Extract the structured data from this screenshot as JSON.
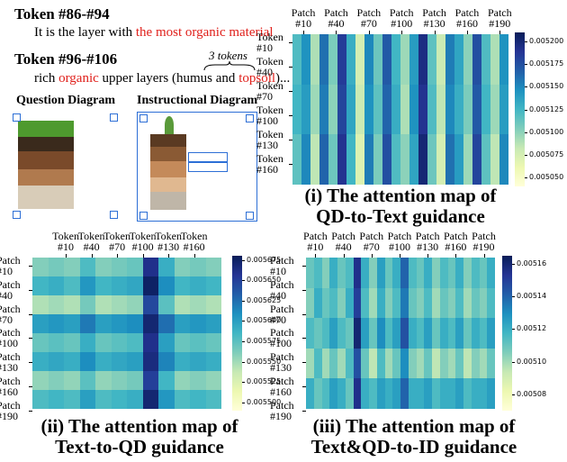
{
  "text_panel": {
    "sections": [
      {
        "heading": "Token #86-#94",
        "text": "It is the layer with ",
        "highlight": "the most organic material"
      },
      {
        "heading": "Token #96-#106",
        "text_before": "rich ",
        "highlight_1": "organic",
        "text_middle": " upper layers (humus and ",
        "highlight_2": "topsoil",
        "text_after": ")...",
        "note": "3 tokens"
      }
    ],
    "diagrams": [
      "Question Diagram",
      "Instructional Diagram"
    ]
  },
  "chart_data": [
    {
      "type": "heatmap",
      "title": [
        "(i) The attention map of",
        "QD-to-Text guidance"
      ],
      "xlim": [
        0,
        198
      ],
      "ylim": [
        0,
        185
      ],
      "xticks": [
        {
          "value": 10,
          "label": "Patch #10"
        },
        {
          "value": 40,
          "label": "Patch #40"
        },
        {
          "value": 70,
          "label": "Patch #70"
        },
        {
          "value": 100,
          "label": "Patch #100"
        },
        {
          "value": 130,
          "label": "Patch #130"
        },
        {
          "value": 160,
          "label": "Patch #160"
        },
        {
          "value": 190,
          "label": "Patch #190"
        }
      ],
      "yticks": [
        {
          "value": 10,
          "label": "Token #10"
        },
        {
          "value": 40,
          "label": "Token #40"
        },
        {
          "value": 70,
          "label": "Token #70"
        },
        {
          "value": 100,
          "label": "Token #100"
        },
        {
          "value": 130,
          "label": "Token #130"
        },
        {
          "value": 160,
          "label": "Token #160"
        }
      ],
      "clim": [
        0.00504,
        0.00521
      ],
      "cticks": [
        {
          "value": 0.00505,
          "label": "0.005050"
        },
        {
          "value": 0.005075,
          "label": "0.005075"
        },
        {
          "value": 0.0051,
          "label": "0.005100"
        },
        {
          "value": 0.005125,
          "label": "0.005125"
        },
        {
          "value": 0.00515,
          "label": "0.005150"
        },
        {
          "value": 0.005175,
          "label": "0.005175"
        },
        {
          "value": 0.0052,
          "label": "0.005200"
        }
      ],
      "colormap": [
        "#ffffd9",
        "#edf8b1",
        "#c7e9b4",
        "#7fcdbb",
        "#41b6c4",
        "#1d91c0",
        "#225ea8",
        "#253494",
        "#081d58"
      ],
      "values": [
        [
          0.00512,
          0.005145,
          0.00509,
          0.00516,
          0.005105,
          0.005185,
          0.00513,
          0.005075,
          0.00515,
          0.00511,
          0.00517,
          0.005125,
          0.005095,
          0.00514,
          0.005195,
          0.005115,
          0.00508,
          0.005155,
          0.005135,
          0.0051,
          0.005175,
          0.00512,
          0.00509,
          0.005145
        ],
        [
          0.005125,
          0.00514,
          0.005095,
          0.005155,
          0.0051,
          0.00518,
          0.005135,
          0.00508,
          0.005145,
          0.005115,
          0.005165,
          0.00513,
          0.00509,
          0.005145,
          0.00519,
          0.00512,
          0.005085,
          0.00515,
          0.00513,
          0.005105,
          0.00517,
          0.005125,
          0.005095,
          0.00514
        ],
        [
          0.005115,
          0.00515,
          0.005085,
          0.005165,
          0.00511,
          0.00519,
          0.005125,
          0.00507,
          0.005155,
          0.005105,
          0.005175,
          0.00512,
          0.0051,
          0.005135,
          0.0052,
          0.00511,
          0.005075,
          0.00516,
          0.00514,
          0.005095,
          0.00518,
          0.005115,
          0.005085,
          0.00515
        ]
      ]
    },
    {
      "type": "heatmap",
      "title": [
        "(ii) The attention map of",
        "Text-to-QD guidance"
      ],
      "xlim": [
        -29,
        192
      ],
      "ylim": [
        0,
        188
      ],
      "xticks": [
        {
          "value": 10,
          "label": "Token #10"
        },
        {
          "value": 40,
          "label": "Token #40"
        },
        {
          "value": 70,
          "label": "Token #70"
        },
        {
          "value": 100,
          "label": "Token #100"
        },
        {
          "value": 130,
          "label": "Token #130"
        },
        {
          "value": 160,
          "label": "Token #160"
        }
      ],
      "yticks": [
        {
          "value": 10,
          "label": "Patch #10"
        },
        {
          "value": 40,
          "label": "Patch #40"
        },
        {
          "value": 70,
          "label": "Patch #70"
        },
        {
          "value": 100,
          "label": "Patch #100"
        },
        {
          "value": 130,
          "label": "Patch #130"
        },
        {
          "value": 160,
          "label": "Patch #160"
        },
        {
          "value": 190,
          "label": "Patch #190"
        }
      ],
      "clim": [
        0.00549,
        0.00568
      ],
      "cticks": [
        {
          "value": 0.0055,
          "label": "0.005500"
        },
        {
          "value": 0.005525,
          "label": "0.005525"
        },
        {
          "value": 0.00555,
          "label": "0.005550"
        },
        {
          "value": 0.005575,
          "label": "0.005575"
        },
        {
          "value": 0.0056,
          "label": "0.005600"
        },
        {
          "value": 0.005625,
          "label": "0.005625"
        },
        {
          "value": 0.00565,
          "label": "0.005650"
        },
        {
          "value": 0.005675,
          "label": "0.005675"
        }
      ],
      "colormap": [
        "#ffffd9",
        "#edf8b1",
        "#c7e9b4",
        "#7fcdbb",
        "#41b6c4",
        "#1d91c0",
        "#225ea8",
        "#253494",
        "#081d58"
      ],
      "values": [
        [
          0.00556,
          0.005565,
          0.00556,
          0.00558,
          0.00556,
          0.005565,
          0.00557,
          0.00566,
          0.00559,
          0.00556,
          0.005565,
          0.00556
        ],
        [
          0.005585,
          0.00559,
          0.00558,
          0.005605,
          0.005585,
          0.00559,
          0.005595,
          0.005675,
          0.00561,
          0.005585,
          0.00559,
          0.005585
        ],
        [
          0.005545,
          0.00555,
          0.005545,
          0.005565,
          0.005545,
          0.00555,
          0.005555,
          0.005645,
          0.005575,
          0.005545,
          0.00555,
          0.005545
        ],
        [
          0.0056,
          0.005605,
          0.0056,
          0.00562,
          0.0056,
          0.005605,
          0.00561,
          0.00567,
          0.005625,
          0.0056,
          0.005605,
          0.0056
        ],
        [
          0.00557,
          0.005575,
          0.00557,
          0.00559,
          0.00557,
          0.005575,
          0.00558,
          0.00566,
          0.0056,
          0.00557,
          0.005575,
          0.00557
        ],
        [
          0.00559,
          0.005595,
          0.00559,
          0.00561,
          0.00559,
          0.005595,
          0.0056,
          0.005665,
          0.005615,
          0.00559,
          0.005595,
          0.00559
        ],
        [
          0.005555,
          0.00556,
          0.005555,
          0.005575,
          0.005555,
          0.00556,
          0.005565,
          0.00565,
          0.005585,
          0.005555,
          0.00556,
          0.005555
        ],
        [
          0.00558,
          0.005585,
          0.00558,
          0.0056,
          0.00558,
          0.005585,
          0.00559,
          0.00567,
          0.005605,
          0.00558,
          0.005585,
          0.00558
        ]
      ]
    },
    {
      "type": "heatmap",
      "title": [
        "(iii) The attention map of",
        "Text&QD-to-ID guidance"
      ],
      "xlim": [
        0,
        202
      ],
      "ylim": [
        0,
        188
      ],
      "xticks": [
        {
          "value": 10,
          "label": "Patch #10"
        },
        {
          "value": 40,
          "label": "Patch #40"
        },
        {
          "value": 70,
          "label": "Patch #70"
        },
        {
          "value": 100,
          "label": "Patch #100"
        },
        {
          "value": 130,
          "label": "Patch #130"
        },
        {
          "value": 160,
          "label": "Patch #160"
        },
        {
          "value": 190,
          "label": "Patch #190"
        }
      ],
      "yticks": [
        {
          "value": 10,
          "label": "Patch #10"
        },
        {
          "value": 40,
          "label": "Patch #40"
        },
        {
          "value": 70,
          "label": "Patch #70"
        },
        {
          "value": 100,
          "label": "Patch #100"
        },
        {
          "value": 130,
          "label": "Patch #130"
        },
        {
          "value": 160,
          "label": "Patch #160"
        },
        {
          "value": 190,
          "label": "Patch #190"
        }
      ],
      "clim": [
        0.00507,
        0.005165
      ],
      "cticks": [
        {
          "value": 0.00508,
          "label": "0.00508"
        },
        {
          "value": 0.0051,
          "label": "0.00510"
        },
        {
          "value": 0.00512,
          "label": "0.00512"
        },
        {
          "value": 0.00514,
          "label": "0.00514"
        },
        {
          "value": 0.00516,
          "label": "0.00516"
        }
      ],
      "colormap": [
        "#ffffd9",
        "#edf8b1",
        "#c7e9b4",
        "#7fcdbb",
        "#41b6c4",
        "#1d91c0",
        "#225ea8",
        "#253494",
        "#081d58"
      ],
      "values": [
        [
          0.00511,
          0.005115,
          0.005105,
          0.00512,
          0.00511,
          0.005115,
          0.005155,
          0.00512,
          0.005105,
          0.005125,
          0.00511,
          0.00512,
          0.00514,
          0.005115,
          0.00511,
          0.00512,
          0.005105,
          0.005115,
          0.00511,
          0.00512,
          0.005105,
          0.005115,
          0.00511,
          0.00512
        ],
        [
          0.005105,
          0.00512,
          0.00511,
          0.005115,
          0.005105,
          0.00512,
          0.00515,
          0.005115,
          0.0051,
          0.00512,
          0.005105,
          0.005115,
          0.005135,
          0.00511,
          0.005105,
          0.005115,
          0.0051,
          0.00511,
          0.005105,
          0.005115,
          0.0051,
          0.00511,
          0.005105,
          0.005115
        ],
        [
          0.005115,
          0.00511,
          0.005115,
          0.005125,
          0.005115,
          0.00511,
          0.00516,
          0.005125,
          0.00511,
          0.00513,
          0.005115,
          0.005125,
          0.005145,
          0.00512,
          0.005115,
          0.005125,
          0.00511,
          0.00512,
          0.005115,
          0.005125,
          0.00511,
          0.00512,
          0.005115,
          0.005125
        ],
        [
          0.0051,
          0.005115,
          0.0051,
          0.00511,
          0.0051,
          0.005115,
          0.005145,
          0.00511,
          0.005095,
          0.005115,
          0.0051,
          0.00511,
          0.00513,
          0.005105,
          0.0051,
          0.00511,
          0.005095,
          0.005105,
          0.0051,
          0.00511,
          0.005095,
          0.005105,
          0.0051,
          0.00511
        ],
        [
          0.00512,
          0.00511,
          0.005115,
          0.005125,
          0.00512,
          0.00511,
          0.005155,
          0.00512,
          0.005115,
          0.005125,
          0.00512,
          0.005125,
          0.00514,
          0.00512,
          0.00512,
          0.005125,
          0.005115,
          0.00512,
          0.00512,
          0.005125,
          0.005115,
          0.00512,
          0.00512,
          0.005125
        ]
      ]
    }
  ]
}
